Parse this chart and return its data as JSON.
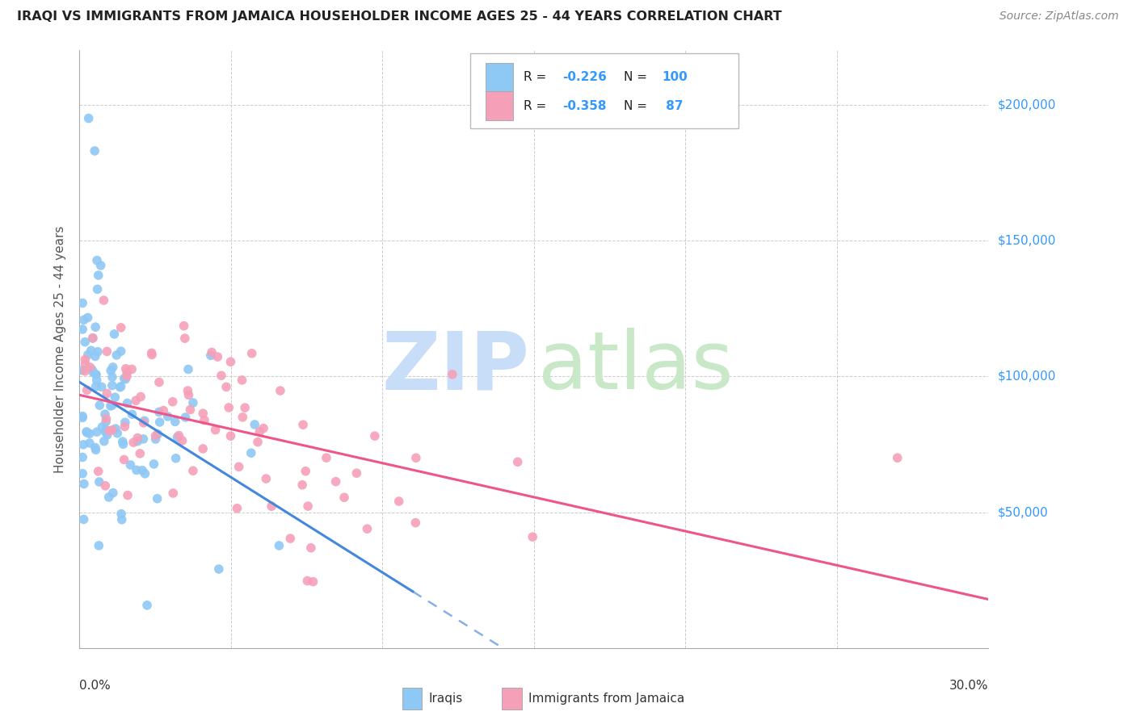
{
  "title": "IRAQI VS IMMIGRANTS FROM JAMAICA HOUSEHOLDER INCOME AGES 25 - 44 YEARS CORRELATION CHART",
  "source": "Source: ZipAtlas.com",
  "ylabel": "Householder Income Ages 25 - 44 years",
  "color_iraqi": "#8ec8f5",
  "color_jamaica": "#f5a0b8",
  "color_line_iraqi": "#4488dd",
  "color_line_jamaica": "#ee5588",
  "color_ytick": "#3399ff",
  "background": "#ffffff",
  "xlim": [
    0.0,
    0.3
  ],
  "ylim": [
    0,
    220000
  ],
  "ytick_vals": [
    50000,
    100000,
    150000,
    200000
  ],
  "ytick_labels": [
    "$50,000",
    "$100,000",
    "$150,000",
    "$200,000"
  ]
}
